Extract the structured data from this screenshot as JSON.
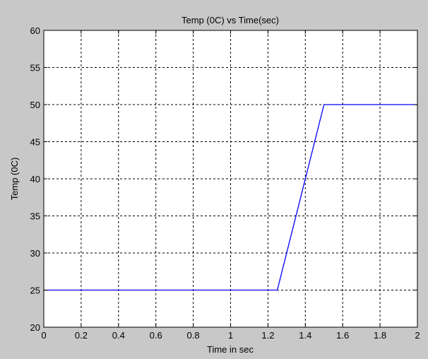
{
  "chart_data": {
    "type": "line",
    "title": "Temp (0C) vs Time(sec)",
    "xlabel": "Time in sec",
    "ylabel": "Temp (0C)",
    "xlim": [
      0,
      2
    ],
    "ylim": [
      20,
      60
    ],
    "xticks": [
      0,
      0.2,
      0.4,
      0.6,
      0.8,
      1,
      1.2,
      1.4,
      1.6,
      1.8,
      2
    ],
    "xtick_labels": [
      "0",
      "0.2",
      "0.4",
      "0.6",
      "0.8",
      "1",
      "1.2",
      "1.4",
      "1.6",
      "1.8",
      "2"
    ],
    "yticks": [
      20,
      25,
      30,
      35,
      40,
      45,
      50,
      55,
      60
    ],
    "ytick_labels": [
      "20",
      "25",
      "30",
      "35",
      "40",
      "45",
      "50",
      "55",
      "60"
    ],
    "grid": true,
    "grid_style": "dotted",
    "series": [
      {
        "color": "#0000ff",
        "x": [
          0,
          1.25,
          1.5,
          2
        ],
        "y": [
          25,
          25,
          50,
          50
        ]
      }
    ]
  },
  "colors": {
    "figure_background": "#c8c8c8",
    "axes_background": "#ffffff",
    "line": "#0000ff"
  }
}
